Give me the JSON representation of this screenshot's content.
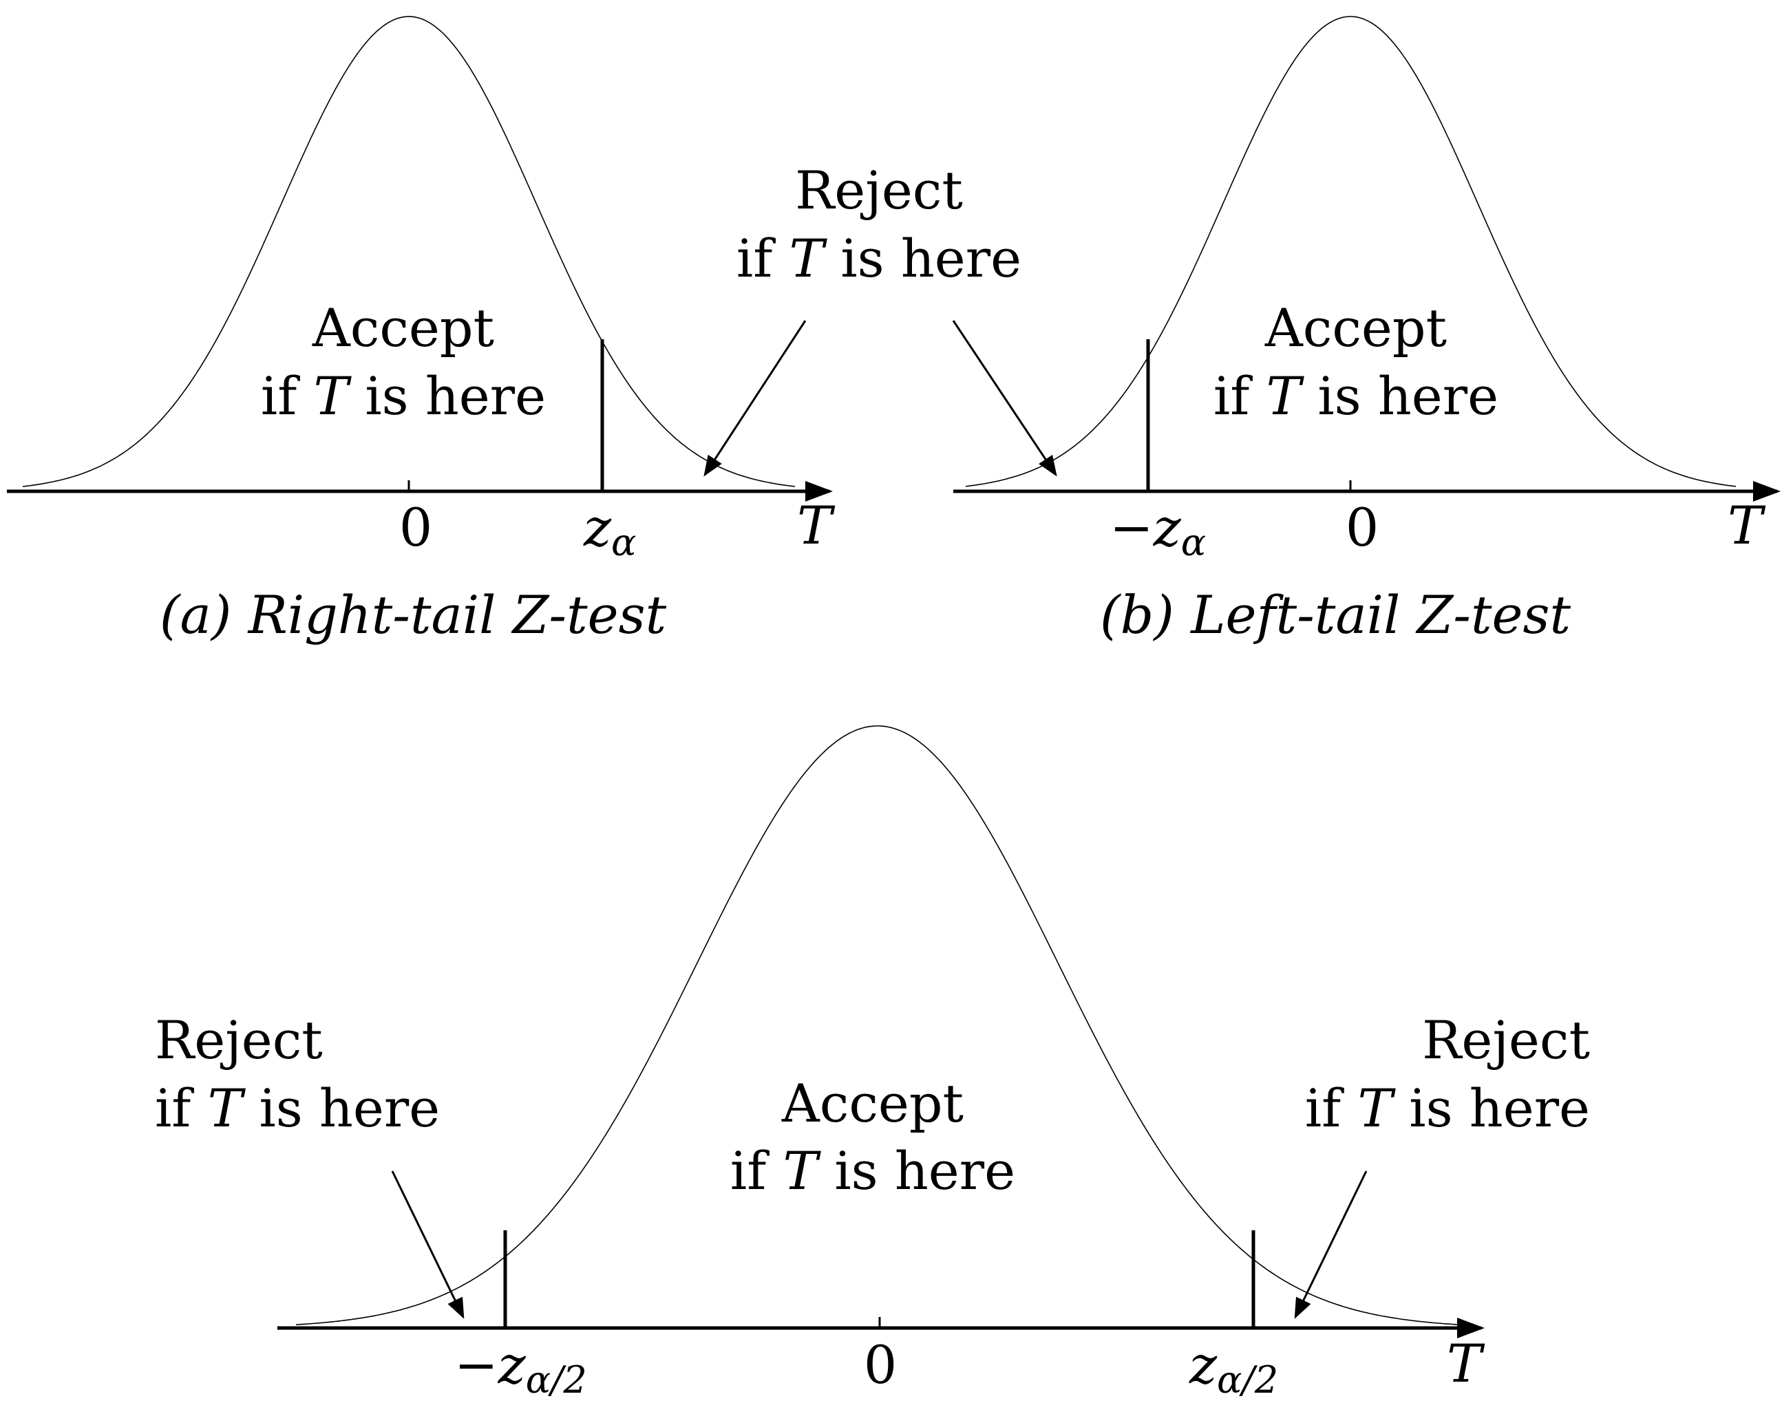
{
  "panels": {
    "a": {
      "caption": "(a) Right-tail Z-test",
      "zero_label": "0",
      "critical_label": "z",
      "critical_sub": "α",
      "axis_label": "T",
      "accept_line1": "Accept",
      "accept_line2_pre": "if ",
      "accept_line2_var": "T",
      "accept_line2_post": " is here",
      "reject_line1": "Reject",
      "reject_line2_pre": "if ",
      "reject_line2_var": "T",
      "reject_line2_post": " is here"
    },
    "b": {
      "caption": "(b) Left-tail Z-test",
      "zero_label": "0",
      "critical_label": "−z",
      "critical_sub": "α",
      "axis_label": "T",
      "accept_line1": "Accept",
      "accept_line2_pre": "if ",
      "accept_line2_var": "T",
      "accept_line2_post": " is here"
    },
    "c": {
      "zero_label": "0",
      "left_critical_label": "−z",
      "left_critical_sub": "α/2",
      "right_critical_label": "z",
      "right_critical_sub": "α/2",
      "axis_label": "T",
      "accept_line1": "Accept",
      "accept_line2_pre": "if ",
      "accept_line2_var": "T",
      "accept_line2_post": " is here",
      "reject_left_line1": "Reject",
      "reject_left_line2_pre": "if ",
      "reject_left_line2_var": "T",
      "reject_left_line2_post": " is here",
      "reject_right_line1": "Reject",
      "reject_right_line2_pre": "if ",
      "reject_right_line2_var": "T",
      "reject_right_line2_post": " is here"
    }
  }
}
